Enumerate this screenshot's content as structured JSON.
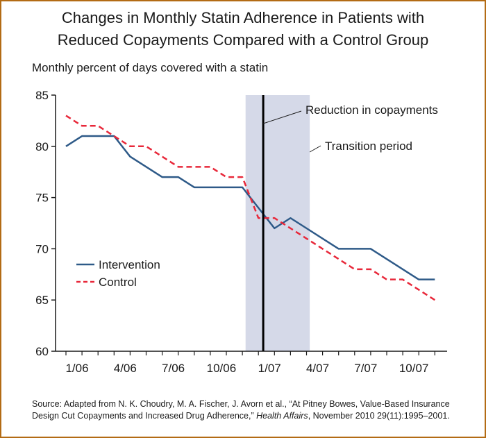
{
  "title_line1": "Changes in Monthly Statin Adherence in Patients with",
  "title_line2": "Reduced Copayments Compared with a Control Group",
  "ylabel": "Monthly percent of days covered with a statin",
  "source": {
    "prefix": "Source: Adapted from N. K. Choudry, M. A. Fischer, J. Avorn et al., “At Pitney Bowes, Value-Based Insurance Design Cut Copayments and Increased Drug Adherence,” ",
    "journal": "Health Affairs",
    "suffix": ", November 2010 29(11):1995–2001."
  },
  "colors": {
    "intervention": "#2e5a88",
    "control": "#e8283a",
    "transition_band": "#d5d9e8",
    "frame": "#b36b14"
  },
  "chart_data": {
    "type": "line",
    "x": [
      "1/06",
      "2/06",
      "3/06",
      "4/06",
      "5/06",
      "6/06",
      "7/06",
      "8/06",
      "9/06",
      "10/06",
      "11/06",
      "12/06",
      "1/07",
      "2/07",
      "3/07",
      "4/07",
      "5/07",
      "6/07",
      "7/07",
      "8/07",
      "9/07",
      "10/07",
      "11/07",
      "12/07"
    ],
    "xticks": [
      "1/06",
      "4/06",
      "7/06",
      "10/06",
      "1/07",
      "4/07",
      "7/07",
      "10/07"
    ],
    "series": [
      {
        "name": "Intervention",
        "style": "solid",
        "values": [
          80,
          81,
          81,
          81,
          79,
          78,
          77,
          77,
          76,
          76,
          76,
          76,
          74,
          72,
          73,
          72,
          71,
          70,
          70,
          70,
          69,
          68,
          67,
          67
        ]
      },
      {
        "name": "Control",
        "style": "dashed",
        "values": [
          83,
          82,
          82,
          81,
          80,
          80,
          79,
          78,
          78,
          78,
          77,
          77,
          73,
          73,
          72,
          71,
          70,
          69,
          68,
          68,
          67,
          67,
          66,
          65
        ]
      }
    ],
    "ylim": [
      60,
      85
    ],
    "yticks": [
      60,
      65,
      70,
      75,
      80,
      85
    ],
    "annotations": {
      "reduction": {
        "label": "Reduction in copayments",
        "x": 12.3
      },
      "transition": {
        "label": "Transition period",
        "x_start": 11.2,
        "x_end": 15.2
      }
    },
    "legend_placement": "lower-left",
    "grid": false
  }
}
